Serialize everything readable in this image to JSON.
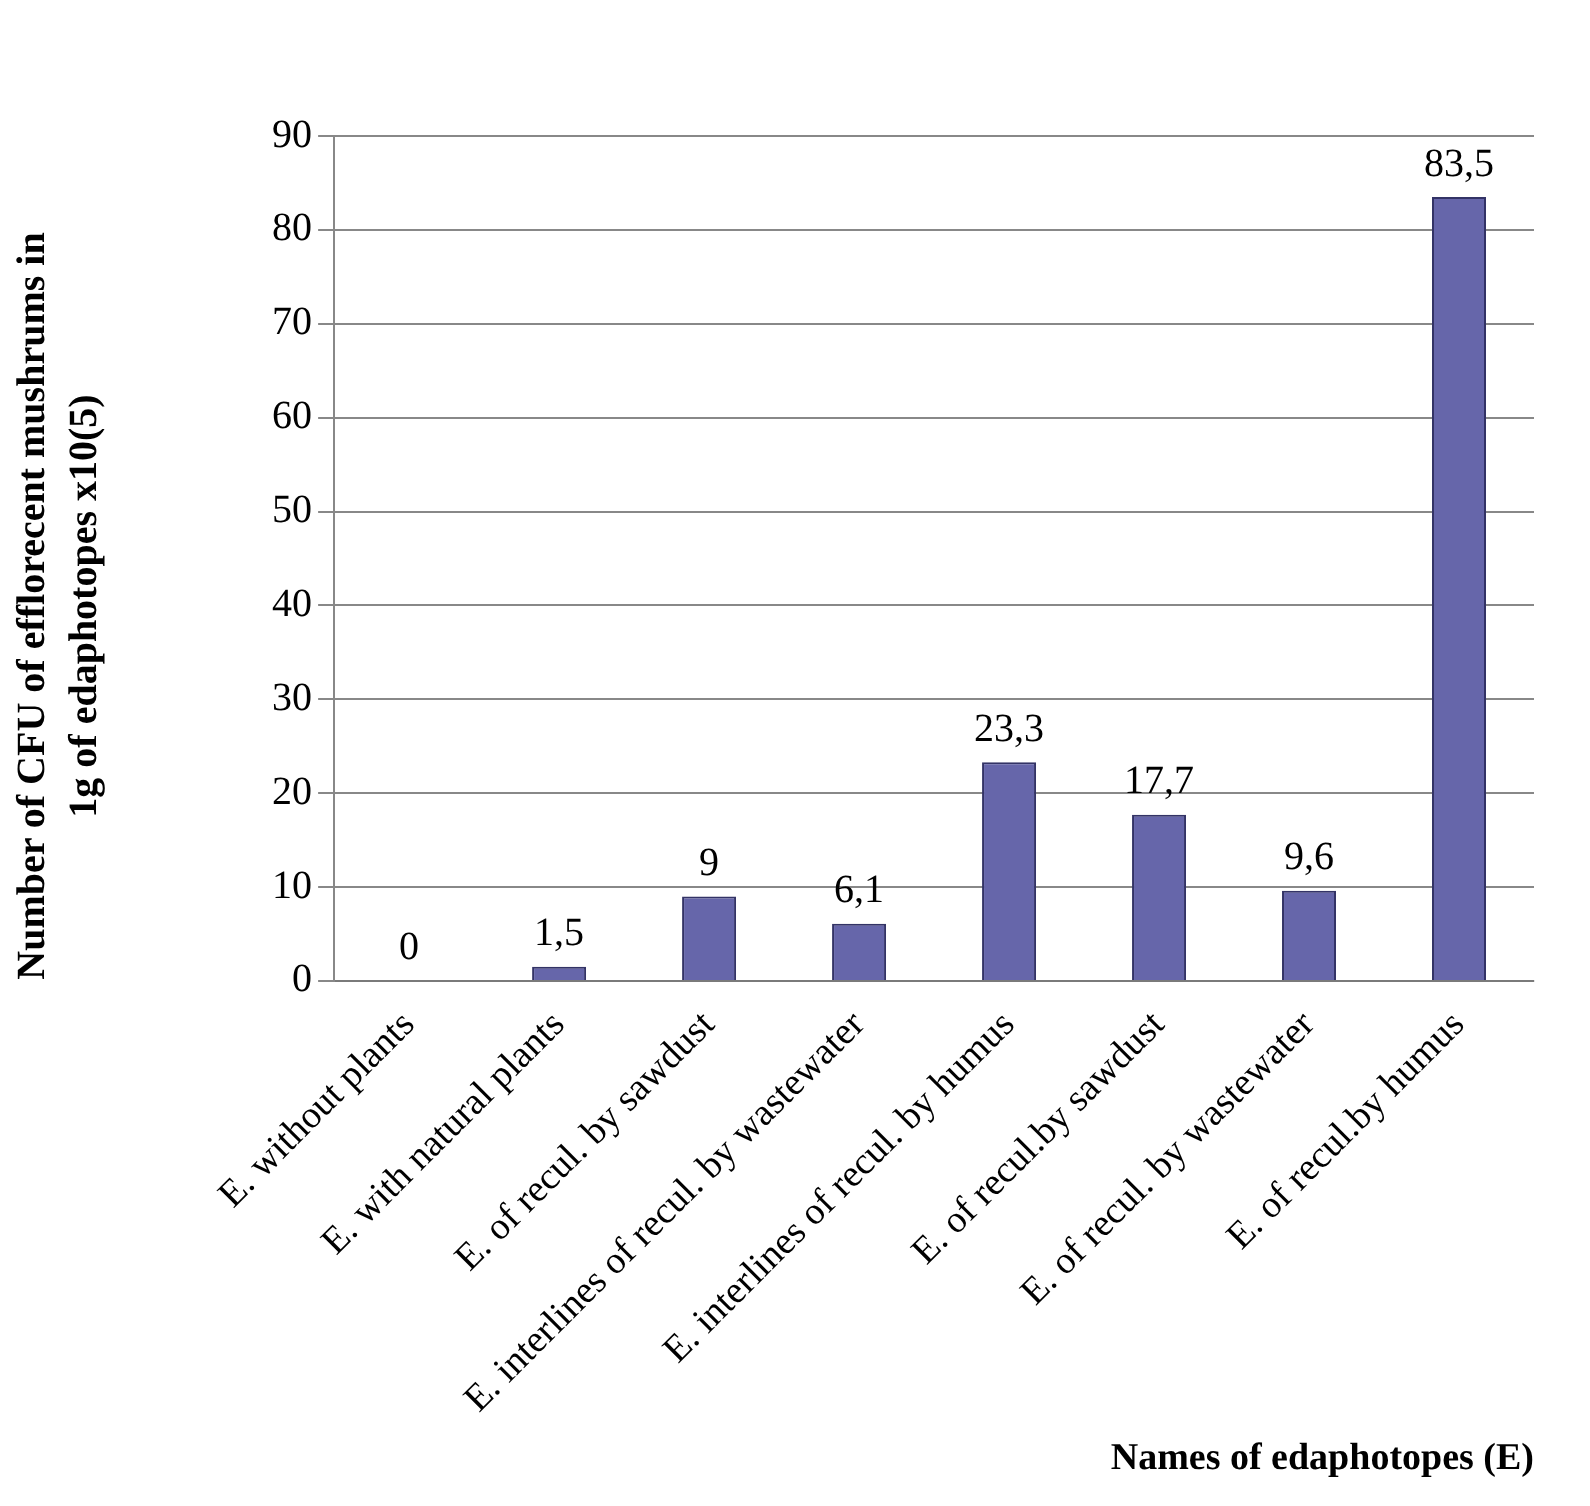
{
  "chart_data": {
    "type": "bar",
    "ylabel": "Number of CFU of efflorecent mushrums in 1g of edaphotopes x10(5)",
    "xlabel": "Names of edaphotopes (E)",
    "categories": [
      "E. without plants",
      "E. with natural plants",
      "E. of recul. by sawdust",
      "E. interlines of recul. by wastewater",
      "E. interlines of recul. by humus",
      "E. of recul.by sawdust",
      "E. of recul. by wastewater",
      "E. of recul.by humus"
    ],
    "values": [
      0,
      1.5,
      9,
      6.1,
      23.3,
      17.7,
      9.6,
      83.5
    ],
    "value_labels": [
      "0",
      "1,5",
      "9",
      "6,1",
      "23,3",
      "17,7",
      "9,6",
      "83,5"
    ],
    "color": "#6666aa",
    "ylim": [
      0,
      90
    ],
    "yticks": [
      0,
      10,
      20,
      30,
      40,
      50,
      60,
      70,
      80,
      90
    ],
    "grid": "y",
    "legend": false
  }
}
